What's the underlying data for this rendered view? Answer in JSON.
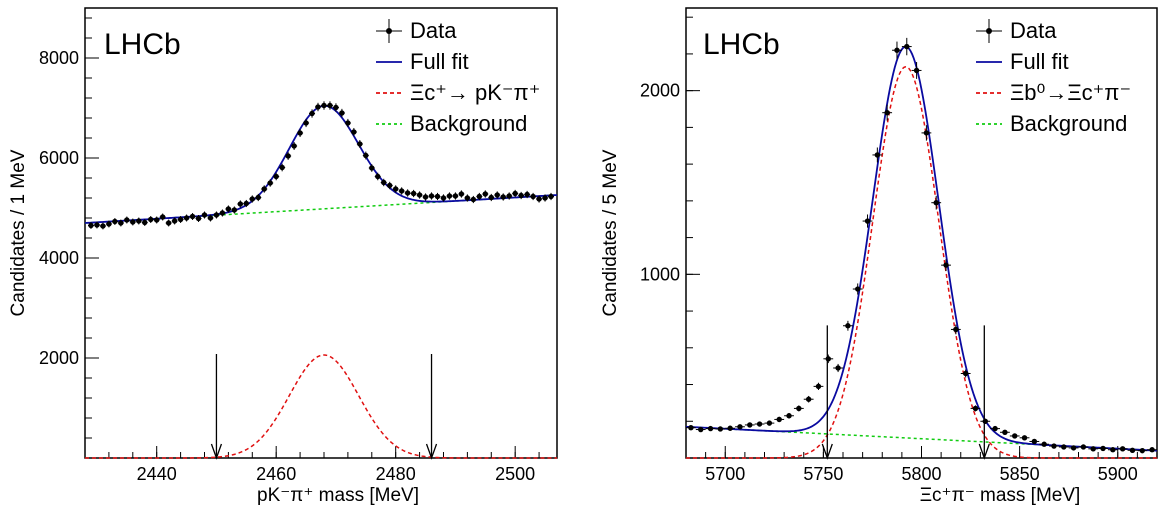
{
  "chart_data": [
    {
      "type": "scatter",
      "experiment_label": "LHCb",
      "xlabel": "pK⁻π⁺ mass [MeV]",
      "ylabel": "Candidates / 1 MeV",
      "xlim": [
        2428,
        2507
      ],
      "ylim": [
        0,
        9000
      ],
      "xticks": [
        2440,
        2460,
        2480,
        2500
      ],
      "yticks": [
        2000,
        4000,
        6000,
        8000
      ],
      "legend": [
        "Data",
        "Full fit",
        "Ξc⁺→ pK⁻π⁺",
        "Background"
      ],
      "legend_placement": "top-right",
      "colors": {
        "data": "#000000",
        "full_fit": "#0a0aa0",
        "signal": "#e01010",
        "background": "#10cc10"
      },
      "data_points": {
        "x": [
          2429,
          2430,
          2431,
          2432,
          2433,
          2434,
          2435,
          2436,
          2437,
          2438,
          2439,
          2440,
          2441,
          2442,
          2443,
          2444,
          2445,
          2446,
          2447,
          2448,
          2449,
          2450,
          2451,
          2452,
          2453,
          2454,
          2455,
          2456,
          2457,
          2458,
          2459,
          2460,
          2461,
          2462,
          2463,
          2464,
          2465,
          2466,
          2467,
          2468,
          2469,
          2470,
          2471,
          2472,
          2473,
          2474,
          2475,
          2476,
          2477,
          2478,
          2479,
          2480,
          2481,
          2482,
          2483,
          2484,
          2485,
          2486,
          2487,
          2488,
          2489,
          2490,
          2491,
          2492,
          2493,
          2494,
          2495,
          2496,
          2497,
          2498,
          2499,
          2500,
          2501,
          2502,
          2503,
          2504,
          2505,
          2506
        ],
        "y": [
          4650,
          4660,
          4640,
          4680,
          4730,
          4700,
          4760,
          4720,
          4740,
          4710,
          4770,
          4760,
          4820,
          4700,
          4740,
          4770,
          4800,
          4830,
          4790,
          4860,
          4800,
          4860,
          4900,
          4980,
          4960,
          5080,
          5090,
          5180,
          5210,
          5380,
          5500,
          5630,
          5810,
          6040,
          6240,
          6500,
          6700,
          6890,
          7020,
          7050,
          7050,
          7010,
          6900,
          6700,
          6520,
          6280,
          6050,
          5800,
          5630,
          5510,
          5450,
          5380,
          5340,
          5300,
          5290,
          5260,
          5220,
          5240,
          5230,
          5200,
          5240,
          5240,
          5280,
          5200,
          5170,
          5230,
          5280,
          5210,
          5260,
          5220,
          5240,
          5290,
          5250,
          5270,
          5230,
          5180,
          5200,
          5230
        ]
      },
      "background_line": {
        "x": [
          2428,
          2507
        ],
        "y": [
          4700,
          5260
        ]
      },
      "signal_peak": {
        "mean": 2468,
        "sigma": 5.8,
        "height": 2060
      },
      "arrows_x": [
        2450,
        2486
      ],
      "arrow_top_y": 2000
    },
    {
      "type": "scatter",
      "experiment_label": "LHCb",
      "xlabel": "Ξc⁺π⁻ mass [MeV]",
      "ylabel": "Candidates / 5 MeV",
      "xlim": [
        5680,
        5920
      ],
      "ylim": [
        0,
        2450
      ],
      "xticks": [
        5700,
        5750,
        5800,
        5850,
        5900
      ],
      "yticks": [
        1000,
        2000
      ],
      "legend": [
        "Data",
        "Full fit",
        "Ξb⁰→Ξc⁺π⁻",
        "Background"
      ],
      "legend_placement": "top-right",
      "colors": {
        "data": "#000000",
        "full_fit": "#0a0aa0",
        "signal": "#e01010",
        "background": "#10cc10"
      },
      "data_points": {
        "x": [
          5682.5,
          5687.5,
          5692.5,
          5697.5,
          5702.5,
          5707.5,
          5712.5,
          5717.5,
          5722.5,
          5727.5,
          5732.5,
          5737.5,
          5742.5,
          5747.5,
          5752.5,
          5757.5,
          5762.5,
          5767.5,
          5772.5,
          5777.5,
          5782.5,
          5787.5,
          5792.5,
          5797.5,
          5802.5,
          5807.5,
          5812.5,
          5817.5,
          5822.5,
          5827.5,
          5832.5,
          5837.5,
          5842.5,
          5847.5,
          5852.5,
          5857.5,
          5862.5,
          5867.5,
          5872.5,
          5877.5,
          5882.5,
          5887.5,
          5892.5,
          5897.5,
          5902.5,
          5907.5,
          5912.5,
          5917.5
        ],
        "y": [
          165,
          155,
          160,
          158,
          162,
          170,
          180,
          185,
          190,
          210,
          230,
          270,
          320,
          390,
          540,
          490,
          720,
          920,
          1290,
          1650,
          1880,
          2220,
          2240,
          2110,
          1770,
          1390,
          1050,
          700,
          460,
          270,
          200,
          160,
          140,
          120,
          110,
          90,
          75,
          65,
          60,
          55,
          60,
          50,
          52,
          45,
          50,
          42,
          40,
          45
        ]
      },
      "background_line": {
        "x": [
          5680,
          5920
        ],
        "y": [
          170,
          40
        ]
      },
      "signal_peak": {
        "mean": 5792,
        "sigma": 16.8,
        "height": 2130
      },
      "arrows_x": [
        5752,
        5832
      ],
      "arrow_top_y": 700
    }
  ]
}
